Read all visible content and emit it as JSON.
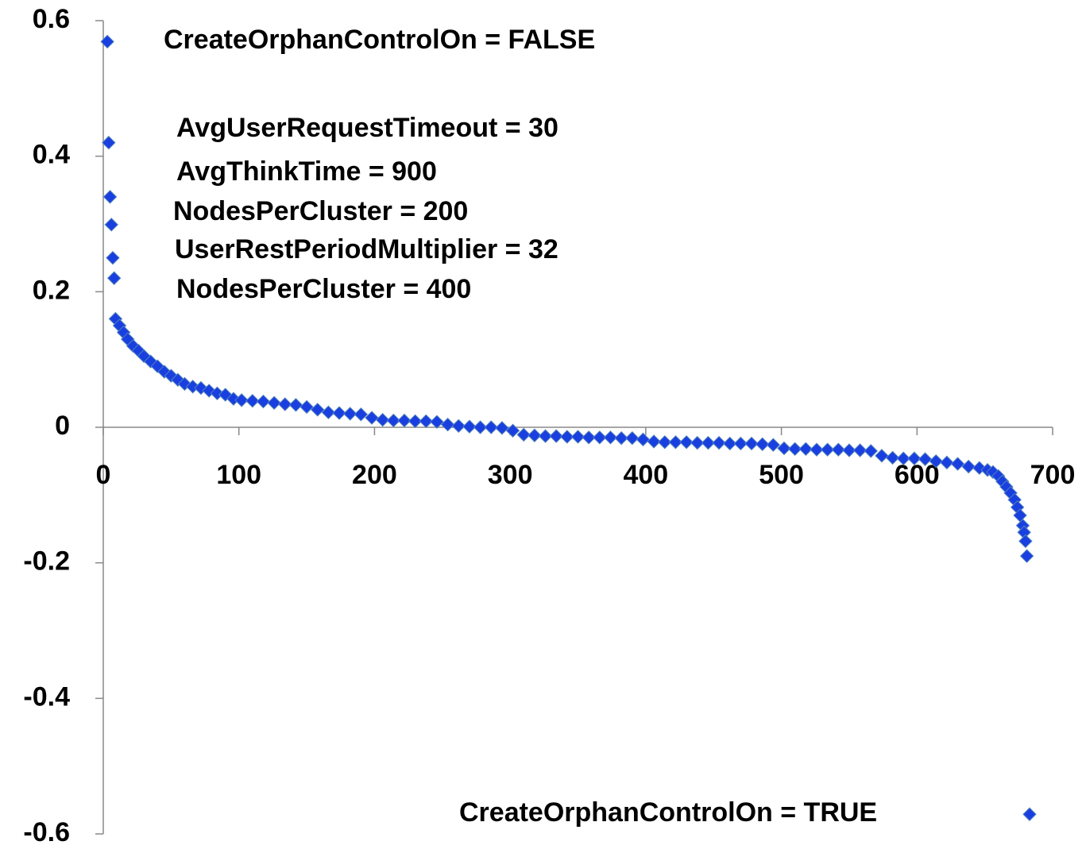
{
  "chart_data": {
    "type": "scatter",
    "series": [
      {
        "color": "#1a3fe0",
        "x": [
          3,
          4,
          5,
          6,
          7,
          8,
          9,
          12,
          15,
          18,
          22,
          26,
          30,
          35,
          40,
          45,
          50,
          55,
          60,
          66,
          72,
          78,
          84,
          90,
          96,
          102,
          110,
          118,
          126,
          134,
          142,
          150,
          158,
          166,
          174,
          182,
          190,
          198,
          206,
          214,
          222,
          230,
          238,
          246,
          254,
          262,
          270,
          278,
          286,
          294,
          302,
          310,
          318,
          326,
          334,
          342,
          350,
          358,
          366,
          374,
          382,
          390,
          398,
          406,
          414,
          422,
          430,
          438,
          446,
          454,
          462,
          470,
          478,
          486,
          494,
          502,
          510,
          518,
          526,
          534,
          542,
          550,
          558,
          566,
          574,
          582,
          590,
          598,
          606,
          614,
          622,
          630,
          638,
          646,
          652,
          656,
          660,
          663,
          666,
          669,
          672,
          674,
          676,
          678,
          679,
          680,
          681,
          683
        ],
        "values": [
          0.569,
          0.42,
          0.34,
          0.299,
          0.25,
          0.22,
          0.16,
          0.15,
          0.14,
          0.13,
          0.12,
          0.113,
          0.105,
          0.097,
          0.09,
          0.082,
          0.076,
          0.07,
          0.064,
          0.06,
          0.058,
          0.054,
          0.05,
          0.048,
          0.042,
          0.04,
          0.039,
          0.038,
          0.036,
          0.034,
          0.033,
          0.03,
          0.026,
          0.022,
          0.021,
          0.02,
          0.019,
          0.014,
          0.011,
          0.01,
          0.01,
          0.009,
          0.009,
          0.008,
          0.004,
          0.002,
          0.001,
          0,
          0,
          -0.001,
          -0.005,
          -0.011,
          -0.012,
          -0.013,
          -0.013,
          -0.014,
          -0.014,
          -0.015,
          -0.015,
          -0.015,
          -0.016,
          -0.016,
          -0.018,
          -0.021,
          -0.022,
          -0.022,
          -0.022,
          -0.023,
          -0.023,
          -0.023,
          -0.024,
          -0.024,
          -0.024,
          -0.025,
          -0.026,
          -0.031,
          -0.032,
          -0.032,
          -0.033,
          -0.033,
          -0.033,
          -0.034,
          -0.034,
          -0.035,
          -0.042,
          -0.045,
          -0.046,
          -0.046,
          -0.047,
          -0.05,
          -0.052,
          -0.054,
          -0.058,
          -0.06,
          -0.063,
          -0.066,
          -0.072,
          -0.08,
          -0.088,
          -0.097,
          -0.107,
          -0.118,
          -0.13,
          -0.145,
          -0.155,
          -0.168,
          -0.19,
          -0.571
        ]
      }
    ],
    "annotations": [
      "CreateOrphanControlOn  = FALSE",
      "AvgUserRequestTimeout  = 30",
      "AvgThinkTime  = 900",
      "NodesPerCluster = 200",
      "UserRestPeriodMultiplier = 32",
      "NodesPerCluster = 400",
      "CreateOrphanControlOn  = TRUE"
    ],
    "xlim": [
      0,
      700
    ],
    "xticks": [
      0,
      100,
      200,
      300,
      400,
      500,
      600,
      700
    ],
    "ylim": [
      -0.6,
      0.6
    ],
    "yticks": [
      -0.6,
      -0.4,
      -0.2,
      0,
      0.2,
      0.4,
      0.6
    ]
  }
}
